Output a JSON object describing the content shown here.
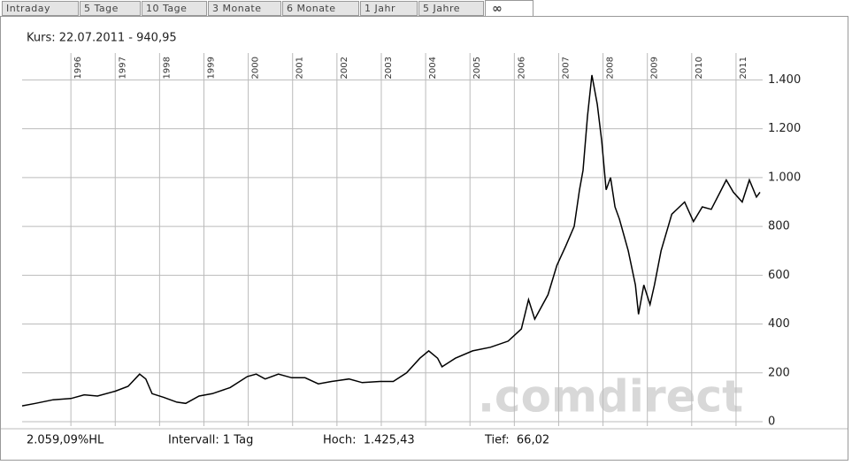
{
  "tabs": [
    "Intraday",
    "5 Tage",
    "10 Tage",
    "3 Monate",
    "6 Monate",
    "1 Jahr",
    "5 Jahre",
    "∞"
  ],
  "active_tab": 7,
  "header": "Kurs: 22.07.2011 - 940,95",
  "watermark": ".comdirect",
  "footer": [
    "2.059,09%HL",
    "Intervall: 1 Tag",
    "Hoch:  1.425,43",
    "Tief:  66,02"
  ],
  "chart_data": {
    "type": "line",
    "grid": true,
    "x": [
      1994.9,
      1995.2,
      1995.6,
      1996.0,
      1996.3,
      1996.6,
      1997.0,
      1997.29,
      1997.55,
      1997.69,
      1997.83,
      1998.09,
      1998.39,
      1998.59,
      1998.89,
      1999.19,
      1999.59,
      1999.98,
      2000.18,
      2000.38,
      2000.68,
      2000.98,
      2001.28,
      2001.58,
      2001.88,
      2002.27,
      2002.57,
      2002.97,
      2003.27,
      2003.57,
      2003.87,
      2004.07,
      2004.27,
      2004.37,
      2004.67,
      2005.06,
      2005.46,
      2005.86,
      2006.16,
      2006.32,
      2006.46,
      2006.76,
      2006.96,
      2007.16,
      2007.35,
      2007.47,
      2007.55,
      2007.65,
      2007.75,
      2007.87,
      2007.97,
      2008.07,
      2008.17,
      2008.27,
      2008.37,
      2008.57,
      2008.73,
      2008.8,
      2008.92,
      2009.06,
      2009.16,
      2009.31,
      2009.55,
      2009.84,
      2010.04,
      2010.24,
      2010.44,
      2010.64,
      2010.78,
      2010.94,
      2011.14,
      2011.3,
      2011.46,
      2011.54
    ],
    "series": [
      {
        "color": "#000000",
        "values": [
          65,
          75,
          90,
          95,
          110,
          105,
          125,
          145,
          195,
          175,
          115,
          100,
          80,
          75,
          105,
          115,
          140,
          185,
          195,
          175,
          195,
          180,
          180,
          155,
          165,
          175,
          160,
          165,
          165,
          200,
          260,
          290,
          260,
          225,
          260,
          290,
          305,
          330,
          380,
          500,
          420,
          520,
          640,
          720,
          800,
          950,
          1030,
          1250,
          1420,
          1300,
          1150,
          950,
          1000,
          880,
          830,
          700,
          560,
          440,
          560,
          480,
          560,
          700,
          850,
          900,
          820,
          880,
          870,
          940,
          990,
          940,
          900,
          990,
          920,
          940
        ]
      }
    ],
    "xlim": [
      1994.9,
      2011.6
    ],
    "xticks": [
      1996,
      1997,
      1998,
      1999,
      2000,
      2001,
      2002,
      2003,
      2004,
      2005,
      2006,
      2007,
      2008,
      2009,
      2010,
      2011
    ],
    "ylim": [
      -18,
      1510
    ],
    "yticks": [
      0,
      200,
      400,
      600,
      800,
      {
        "value": 1000,
        "label": "1.000"
      },
      {
        "value": 1200,
        "label": "1.200"
      },
      {
        "value": 1400,
        "label": "1.400"
      }
    ]
  }
}
